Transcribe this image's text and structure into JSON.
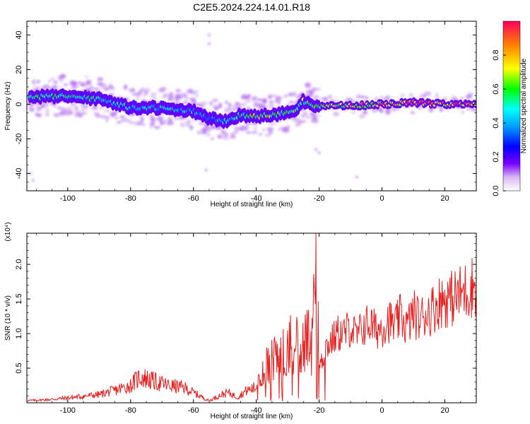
{
  "title": "C2E5.2024.224.14.01.R18",
  "chart_data": [
    {
      "type": "heatmap",
      "xlabel": "Height of straight line (km)",
      "ylabel": "Frequency (Hz)",
      "xlim": [
        -113,
        30
      ],
      "ylim": [
        -50,
        48
      ],
      "xticks": [
        -100,
        -80,
        -60,
        -40,
        -20,
        0,
        20
      ],
      "yticks": [
        -40,
        -20,
        0,
        20,
        40
      ],
      "colorbar": {
        "label": "Normalized spectral amplitude",
        "range": [
          0,
          1
        ],
        "ticks": [
          0.0,
          0.2,
          0.4,
          0.6,
          0.8
        ]
      },
      "ridge": {
        "x": [
          -112,
          -100,
          -90,
          -80,
          -70,
          -60,
          -55,
          -50,
          -45,
          -40,
          -35,
          -30,
          -27,
          -25,
          -22,
          -20,
          -10,
          0,
          10,
          20,
          29
        ],
        "freq": [
          4,
          5,
          3,
          -2,
          -2,
          -4,
          -8,
          -10,
          -6,
          -7,
          -6,
          -5,
          -3,
          2,
          -1,
          -1,
          -1,
          0,
          1,
          0,
          0
        ],
        "amplitude": [
          0.55,
          0.5,
          0.5,
          0.45,
          0.45,
          0.4,
          0.35,
          0.45,
          0.5,
          0.7,
          0.6,
          0.55,
          0.6,
          0.6,
          0.6,
          0.6,
          0.75,
          0.8,
          0.85,
          0.8,
          0.85
        ]
      }
    },
    {
      "type": "line",
      "xlabel": "Height of straight line (km)",
      "ylabel": "SNR (10 * v/v)",
      "yscale_label": "(x10⁴)",
      "xlim": [
        -113,
        30
      ],
      "ylim": [
        0,
        2.45
      ],
      "xticks": [
        -100,
        -80,
        -60,
        -40,
        -20,
        0,
        20
      ],
      "yticks": [
        0.5,
        1.0,
        1.5,
        2.0
      ],
      "ytick_labels": [
        "0.5",
        "1.0",
        "1.5",
        "2.0"
      ],
      "series": [
        {
          "color": "#e82020",
          "x": [
            -113,
            -105,
            -98,
            -90,
            -85,
            -80,
            -77,
            -72,
            -68,
            -63,
            -58,
            -55,
            -52,
            -49,
            -46,
            -43,
            -40,
            -38,
            -36,
            -34,
            -32,
            -30,
            -28,
            -26,
            -24,
            -22.5,
            -21.5,
            -21,
            -20,
            -19,
            -18,
            -16,
            -14,
            -12,
            -10,
            -8,
            -6,
            -4,
            -2,
            0,
            2,
            4,
            6,
            8,
            10,
            12,
            14,
            16,
            18,
            20,
            22,
            24,
            26,
            28,
            29
          ],
          "y": [
            0.03,
            0.05,
            0.08,
            0.12,
            0.18,
            0.25,
            0.38,
            0.3,
            0.25,
            0.22,
            0.1,
            0.03,
            0.1,
            0.15,
            0.08,
            0.18,
            0.22,
            0.35,
            0.55,
            0.7,
            0.6,
            0.9,
            0.75,
            0.85,
            0.9,
            0.7,
            1.2,
            2.45,
            0.5,
            0.6,
            0.8,
            0.9,
            1.0,
            1.0,
            1.1,
            0.95,
            1.1,
            1.15,
            1.05,
            1.1,
            1.2,
            1.1,
            1.25,
            1.1,
            1.3,
            1.2,
            1.3,
            1.35,
            1.45,
            1.5,
            1.5,
            1.55,
            1.6,
            1.65,
            1.7
          ]
        }
      ]
    }
  ]
}
